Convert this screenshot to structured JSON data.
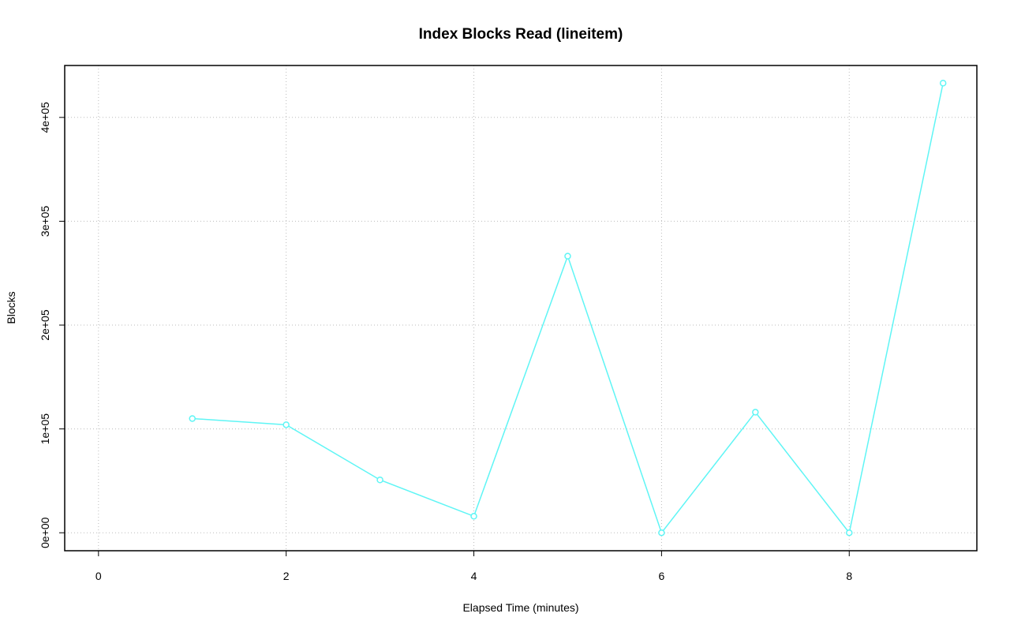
{
  "chart_data": {
    "type": "line",
    "title": "Index Blocks Read (lineitem)",
    "x_label": "Elapsed Time (minutes)",
    "y_label": "Blocks",
    "x": [
      1,
      2,
      3,
      4,
      5,
      6,
      7,
      8,
      9
    ],
    "series": [
      {
        "color": "#5ff5f5",
        "values": [
          110000,
          104000,
          50900,
          15900,
          266400,
          0,
          116100,
          0,
          433000
        ]
      }
    ],
    "xlim": [
      -0.36,
      9.36
    ],
    "xticks": [
      0,
      2,
      4,
      6,
      8
    ],
    "ylim": [
      -17300,
      450000
    ],
    "yticks": [
      {
        "value": 0,
        "label": "0e+00"
      },
      {
        "value": 100000,
        "label": "1e+05"
      },
      {
        "value": 200000,
        "label": "2e+05"
      },
      {
        "value": 300000,
        "label": "3e+05"
      },
      {
        "value": 400000,
        "label": "4e+05"
      }
    ],
    "grid": true
  }
}
